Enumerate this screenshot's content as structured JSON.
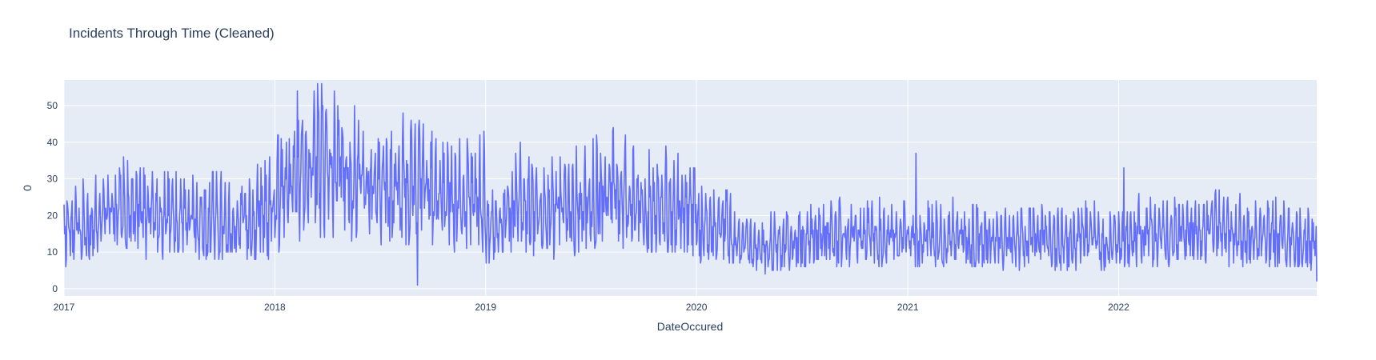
{
  "chart_data": {
    "type": "line",
    "title": "Incidents Through Time (Cleaned)",
    "xlabel": "DateOccured",
    "ylabel": "0",
    "xlim": [
      "2017-01-01",
      "2022-12-10"
    ],
    "ylim": [
      -2,
      57
    ],
    "x_ticks": [
      "2017",
      "2018",
      "2019",
      "2020",
      "2021",
      "2022"
    ],
    "y_ticks": [
      0,
      10,
      20,
      30,
      40,
      50
    ],
    "grid": true,
    "legend": "none",
    "colors": {
      "line": "#636efa",
      "plot_bg": "#e5ecf6",
      "grid": "#ffffff",
      "text": "#2a3f5f"
    },
    "series": [
      {
        "x_start": "2017-01-01",
        "x_end": "2022-12-10",
        "step": "1 day",
        "approximate_monthly_level": [
          16,
          18,
          20,
          21,
          20,
          19,
          19,
          18,
          19,
          17,
          18,
          21,
          26,
          32,
          34,
          32,
          31,
          29,
          27,
          28,
          27,
          26,
          24,
          25,
          17,
          22,
          23,
          21,
          22,
          23,
          25,
          26,
          23,
          22,
          23,
          21,
          17,
          17,
          12,
          11,
          12,
          13,
          14,
          15,
          15,
          14,
          15,
          15,
          13,
          14,
          15,
          14,
          14,
          13,
          13,
          14,
          13,
          13,
          14,
          13,
          13,
          15,
          14,
          15,
          16,
          16,
          15,
          14,
          15,
          14,
          13,
          12
        ],
        "annotated_points": [
          {
            "x": "2018-03-10",
            "y": 54
          },
          {
            "x": "2018-09-05",
            "y": 1
          },
          {
            "x": "2021-01-15",
            "y": 37
          },
          {
            "x": "2022-01-10",
            "y": 33
          },
          {
            "x": "2022-12-10",
            "y": 2
          }
        ]
      }
    ]
  }
}
